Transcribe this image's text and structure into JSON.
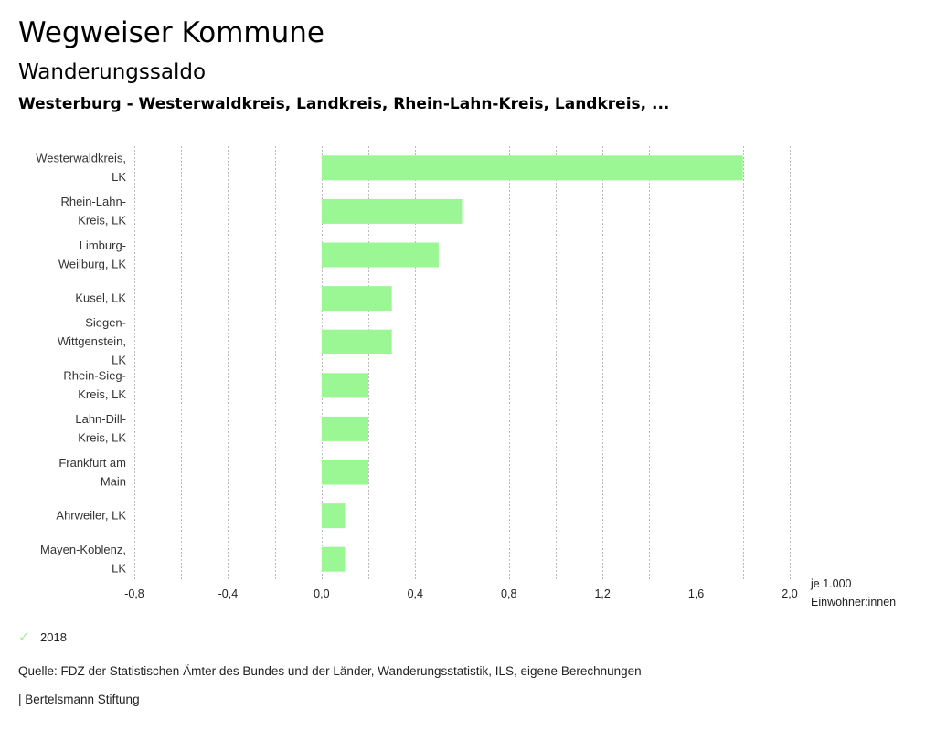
{
  "header": {
    "title": "Wegweiser Kommune",
    "subtitle": "Wanderungssaldo",
    "region": "Westerburg - Westerwaldkreis, Landkreis, Rhein-Lahn-Kreis, Landkreis, ..."
  },
  "chart_data": {
    "type": "bar",
    "orientation": "horizontal",
    "categories": [
      [
        "Westerwaldkreis,",
        "LK"
      ],
      [
        "Rhein-Lahn-",
        "Kreis, LK"
      ],
      [
        "Limburg-",
        "Weilburg, LK"
      ],
      [
        "Kusel, LK"
      ],
      [
        "Siegen-",
        "Wittgenstein,",
        "LK"
      ],
      [
        "Rhein-Sieg-",
        "Kreis, LK"
      ],
      [
        "Lahn-Dill-",
        "Kreis, LK"
      ],
      [
        "Frankfurt am",
        "Main"
      ],
      [
        "Ahrweiler, LK"
      ],
      [
        "Mayen-Koblenz,",
        "LK"
      ]
    ],
    "series": [
      {
        "name": "2018",
        "color": "#9af794",
        "values": [
          1.8,
          0.6,
          0.5,
          0.3,
          0.3,
          0.2,
          0.2,
          0.2,
          0.1,
          0.1
        ]
      }
    ],
    "xlim": [
      -0.8,
      2.0
    ],
    "xticks": [
      -0.8,
      -0.4,
      0.0,
      0.4,
      0.8,
      1.2,
      1.6,
      2.0
    ],
    "xtick_labels": [
      "-0,8",
      "-0,4",
      "0,0",
      "0,4",
      "0,8",
      "1,2",
      "1,6",
      "2,0"
    ],
    "grid_step": 0.2,
    "grid": true,
    "xlabel": [
      "je 1.000",
      "Einwohner:innen"
    ],
    "legend_position": "bottom-left"
  },
  "legend": {
    "label": "2018",
    "icon": "check-icon"
  },
  "footer": {
    "source": "Quelle: FDZ der Statistischen Ämter des Bundes und der Länder, Wanderungsstatistik, ILS, eigene Berechnungen",
    "brand": "| Bertelsmann Stiftung"
  }
}
